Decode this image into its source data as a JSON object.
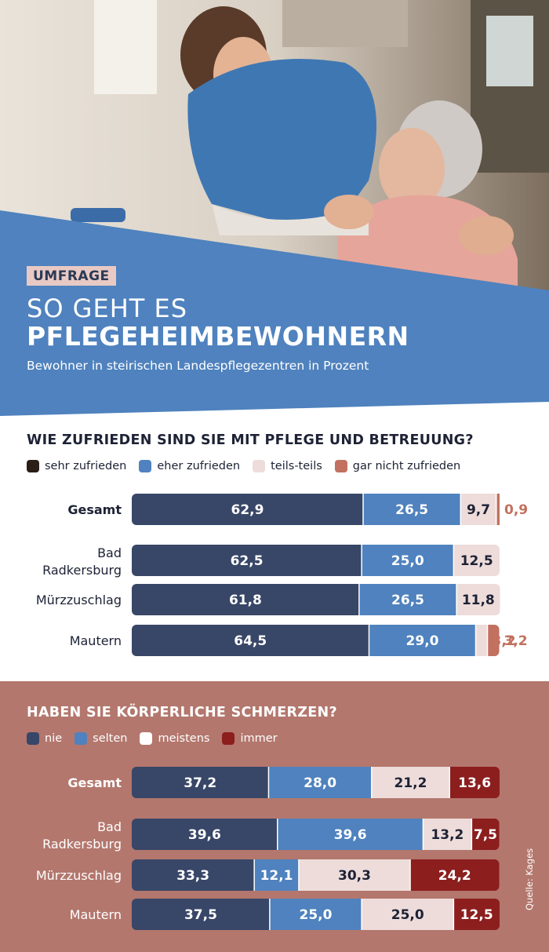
{
  "header": {
    "tag": "UMFRAGE",
    "title_line1": "SO GEHT ES",
    "title_line2": "PFLEGEHEIMBEWOHNERN",
    "subtitle": "Bewohner in steirischen Landespflegezentren in Prozent"
  },
  "colors": {
    "banner_blue": "#4f82be",
    "navy": "#384667",
    "mid_blue": "#4f82be",
    "light_pink": "#eddcda",
    "salmon": "#c2705f",
    "dark_red": "#8c1e1e",
    "section2_bg": "#b3776d"
  },
  "source": "Quelle: Kages",
  "chart_data": [
    {
      "type": "bar",
      "stacked": true,
      "orientation": "horizontal",
      "title": "WIE ZUFRIEDEN SIND SIE MIT PFLEGE UND BETREUUNG?",
      "categories": [
        "Gesamt",
        "Bad Radkersburg",
        "Mürzzuschlag",
        "Mautern"
      ],
      "category_lines": [
        [
          "Gesamt"
        ],
        [
          "Bad",
          "Radkersburg"
        ],
        [
          "Mürzzuschlag"
        ],
        [
          "Mautern"
        ]
      ],
      "series": [
        {
          "name": "sehr zufrieden",
          "color": "#384667",
          "legend_color": "#2a1e16",
          "values": [
            62.9,
            62.5,
            61.8,
            64.5
          ],
          "labels": [
            "62,9",
            "62,5",
            "61,8",
            "64,5"
          ]
        },
        {
          "name": "eher zufrieden",
          "color": "#4f82be",
          "legend_color": "#4f82be",
          "values": [
            26.5,
            25.0,
            26.5,
            29.0
          ],
          "labels": [
            "26,5",
            "25,0",
            "26,5",
            "29,0"
          ]
        },
        {
          "name": "teils-teils",
          "color": "#eddcda",
          "legend_color": "#eddcda",
          "values": [
            9.7,
            12.5,
            11.8,
            3.2
          ],
          "labels": [
            "9,7",
            "12,5",
            "11,8",
            "3,2"
          ]
        },
        {
          "name": "gar nicht zufrieden",
          "color": "#c2705f",
          "legend_color": "#c2705f",
          "values": [
            0.9,
            0,
            0,
            3.2
          ],
          "labels": [
            "0,9",
            "",
            "",
            "3,2"
          ]
        }
      ],
      "xlim": [
        0,
        100
      ]
    },
    {
      "type": "bar",
      "stacked": true,
      "orientation": "horizontal",
      "title": "HABEN SIE KÖRPERLICHE SCHMERZEN?",
      "categories": [
        "Gesamt",
        "Bad Radkersburg",
        "Mürzzuschlag",
        "Mautern"
      ],
      "category_lines": [
        [
          "Gesamt"
        ],
        [
          "Bad",
          "Radkersburg"
        ],
        [
          "Mürzzuschlag"
        ],
        [
          "Mautern"
        ]
      ],
      "series": [
        {
          "name": "nie",
          "color": "#384667",
          "legend_color": "#384667",
          "values": [
            37.2,
            39.6,
            33.3,
            37.5
          ],
          "labels": [
            "37,2",
            "39,6",
            "33,3",
            "37,5"
          ]
        },
        {
          "name": "selten",
          "color": "#4f82be",
          "legend_color": "#4f82be",
          "values": [
            28.0,
            39.6,
            12.1,
            25.0
          ],
          "labels": [
            "28,0",
            "39,6",
            "12,1",
            "25,0"
          ]
        },
        {
          "name": "meistens",
          "color": "#eddcda",
          "legend_color": "#ffffff",
          "values": [
            21.2,
            13.2,
            30.3,
            25.0
          ],
          "labels": [
            "21,2",
            "13,2",
            "30,3",
            "25,0"
          ]
        },
        {
          "name": "immer",
          "color": "#8c1e1e",
          "legend_color": "#8c1e1e",
          "values": [
            13.6,
            7.5,
            24.2,
            12.5
          ],
          "labels": [
            "13,6",
            "7,5",
            "24,2",
            "12,5"
          ]
        }
      ],
      "xlim": [
        0,
        100
      ]
    }
  ]
}
